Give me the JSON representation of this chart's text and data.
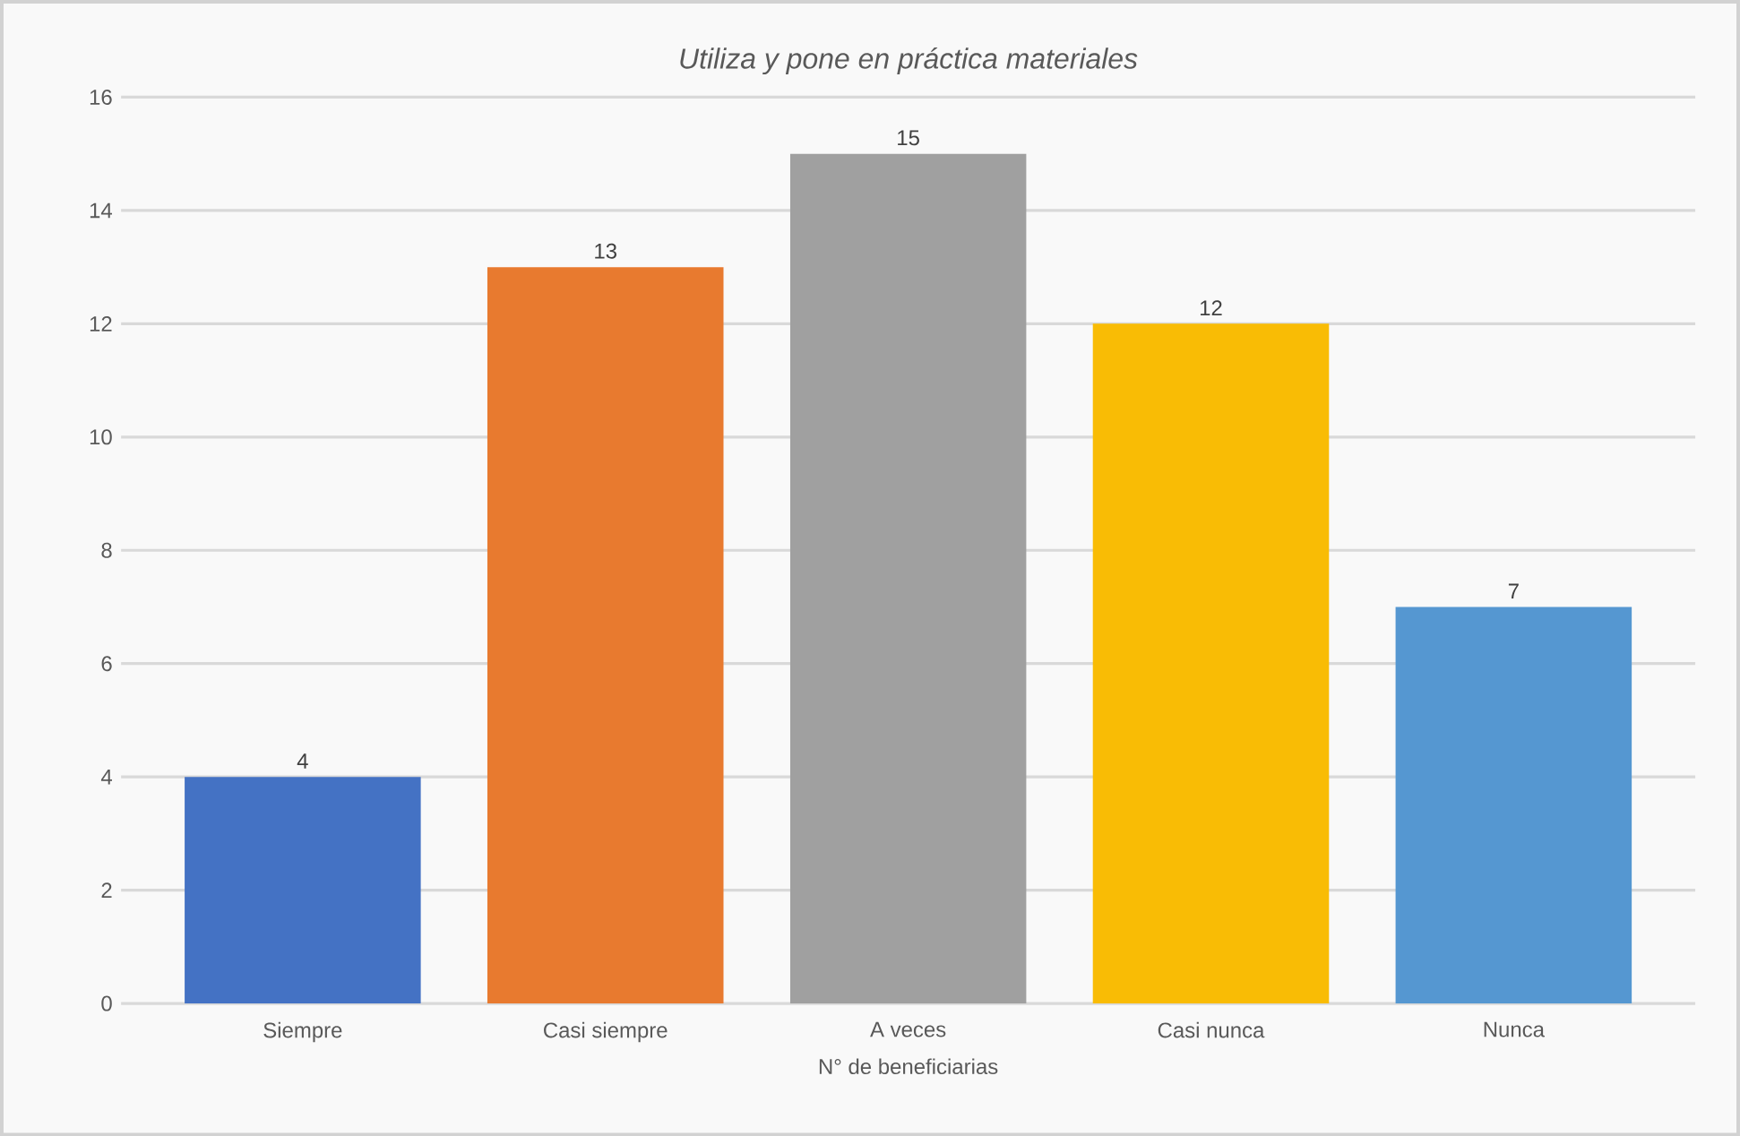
{
  "chart_data": {
    "type": "bar",
    "title": "Utiliza y pone en práctica materiales",
    "xlabel": "N° de beneficiarias",
    "categories": [
      "Siempre",
      "Casi siempre",
      "A veces",
      "Casi nunca",
      "Nunca"
    ],
    "values": [
      4,
      13,
      15,
      12,
      7
    ],
    "colors": [
      "#4472c4",
      "#e87a2f",
      "#a0a0a0",
      "#f9bc05",
      "#5597d1"
    ],
    "ylim": [
      0,
      16
    ],
    "yticks": [
      0,
      2,
      4,
      6,
      8,
      10,
      12,
      14,
      16
    ],
    "grid": "y",
    "data_labels": true
  }
}
